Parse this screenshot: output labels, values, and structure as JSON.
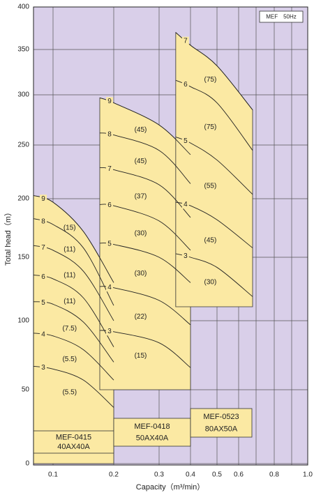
{
  "chart_data": {
    "type": "pump-performance",
    "legend_label": "MEF　50Hz",
    "x_label": "Capacity（m³/min）",
    "y_label": "Total head（m）",
    "xlim": [
      0.07,
      1
    ],
    "xticks": [
      0.1,
      0.2,
      0.3,
      0.4,
      0.5,
      0.6,
      0.8,
      {
        "value": 1,
        "label": "1.0"
      }
    ],
    "x_minor_ticks": [
      0.7,
      0.9
    ],
    "ylim": [
      0,
      400
    ],
    "yticks": [
      0,
      50,
      100,
      150,
      200,
      250,
      300,
      350,
      400
    ],
    "grid": true,
    "background_color": "#d9cfe9",
    "fill_color": "#fbe9a3",
    "models": [
      {
        "name": "MEF-0415",
        "size": "40AX40A",
        "x": [
          0.07,
          0.1,
          0.15,
          0.2
        ],
        "floor": 0,
        "curves": [
          {
            "stages": "9",
            "motor": "(15)",
            "values": [
              203,
              197,
              172,
              130
            ]
          },
          {
            "stages": "8",
            "motor": "(11)",
            "values": [
              183,
              178,
              158,
              112
            ]
          },
          {
            "stages": "7",
            "motor": "(11)",
            "values": [
              160,
              156,
              139,
              100
            ]
          },
          {
            "stages": "6",
            "motor": "(11)",
            "values": [
              136,
              133,
              118,
              81
            ]
          },
          {
            "stages": "5",
            "motor": "(7.5)",
            "values": [
              115,
              113,
              99,
              70
            ]
          },
          {
            "stages": "4",
            "motor": "(5.5)",
            "values": [
              91,
              89,
              79,
              57
            ]
          },
          {
            "stages": "3",
            "motor": "(5.5)",
            "values": [
              67,
              65,
              57,
              38
            ]
          }
        ]
      },
      {
        "name": "MEF-0418",
        "size": "50AX40A",
        "x": [
          0.177,
          0.2,
          0.3,
          0.4
        ],
        "floor": 50,
        "curves": [
          {
            "stages": "9",
            "motor": "(45)",
            "values": [
              297,
              292,
              270,
              241
            ]
          },
          {
            "stages": "8",
            "motor": "(45)",
            "values": [
              262,
              260,
              245,
              214
            ]
          },
          {
            "stages": "7",
            "motor": "(37)",
            "values": [
              229,
              227,
              213,
              184
            ]
          },
          {
            "stages": "6",
            "motor": "(30)",
            "values": [
              195,
              194,
              181,
              156
            ]
          },
          {
            "stages": "5",
            "motor": "(30)",
            "values": [
              162,
              161,
              150,
              130
            ]
          },
          {
            "stages": "4",
            "motor": "(22)",
            "values": [
              127,
              126,
              116,
              97
            ]
          },
          {
            "stages": "3",
            "motor": "(15)",
            "values": [
              93,
              92,
              84,
              66
            ]
          }
        ]
      },
      {
        "name": "MEF-0523",
        "size": "80AX50A",
        "x": [
          0.353,
          0.4,
          0.5,
          0.68
        ],
        "floor": 111,
        "curves": [
          {
            "stages": "7",
            "motor": "(75)",
            "values": [
              370,
              355,
              332,
              285
            ]
          },
          {
            "stages": "6",
            "motor": "(75)",
            "values": [
              316,
              309,
              292,
              245
            ]
          },
          {
            "stages": "5",
            "motor": "(55)",
            "values": [
              258,
              252,
              236,
              204
            ]
          },
          {
            "stages": "4",
            "motor": "(45)",
            "values": [
              197,
              194,
              182,
              158
            ]
          },
          {
            "stages": "3",
            "motor": "(30)",
            "values": [
              153,
              150,
              142,
              119
            ]
          }
        ]
      }
    ]
  }
}
